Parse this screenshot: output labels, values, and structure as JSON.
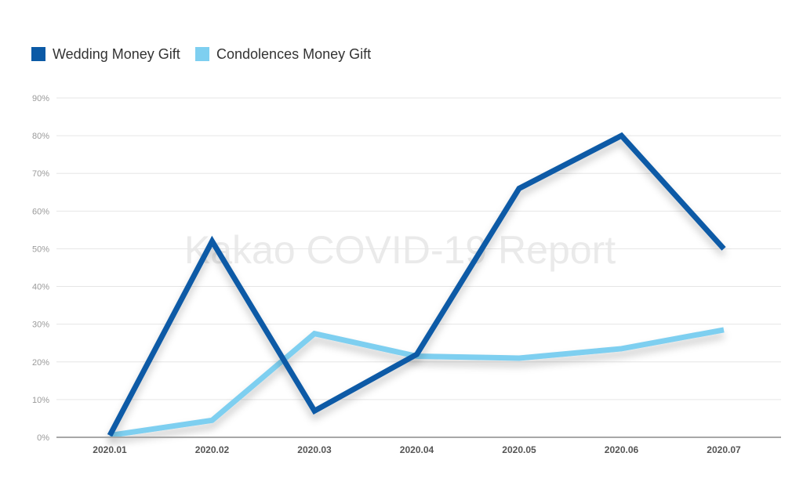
{
  "chart_data": {
    "type": "line",
    "title": "",
    "xlabel": "",
    "ylabel": "",
    "categories": [
      "2020.01",
      "2020.02",
      "2020.03",
      "2020.04",
      "2020.05",
      "2020.06",
      "2020.07"
    ],
    "y_ticks": [
      "0%",
      "10%",
      "20%",
      "30%",
      "40%",
      "50%",
      "60%",
      "70%",
      "80%",
      "90%"
    ],
    "ylim": [
      0,
      90
    ],
    "grid": true,
    "legend_position": "top-left",
    "watermark": "Kakao COVID-19 Report",
    "series": [
      {
        "name": "Wedding Money Gift",
        "color": "#0b5aa6",
        "values": [
          0.5,
          52,
          7,
          22,
          66,
          80,
          50
        ]
      },
      {
        "name": "Condolences Money Gift",
        "color": "#7ecff0",
        "values": [
          0.5,
          4.5,
          27.5,
          21.5,
          21,
          23.5,
          28.5
        ]
      }
    ]
  }
}
